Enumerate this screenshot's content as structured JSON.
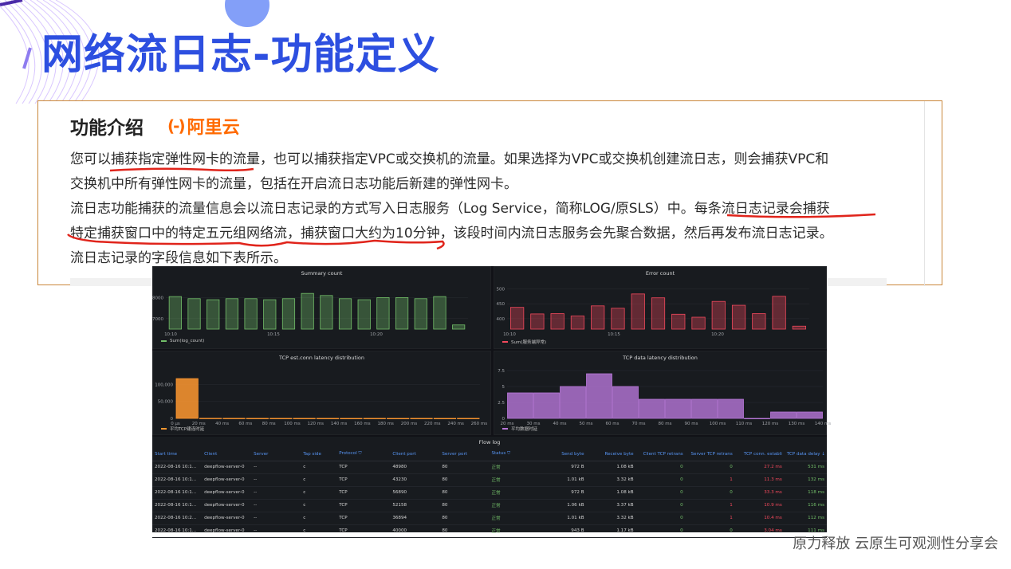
{
  "slide": {
    "title": "网络流日志-功能定义",
    "footer": "原力释放  云原生可观测性分享会"
  },
  "card": {
    "title": "功能介绍",
    "brand": "阿里云",
    "brand_mark": "(-)",
    "paragraphs": [
      "您可以捕获指定弹性网卡的流量，也可以捕获指定VPC或交换机的流量。如果选择为VPC或交换机创建流日志，则会捕获VPC和",
      "交换机中所有弹性网卡的流量，包括在开启流日志功能后新建的弹性网卡。",
      "流日志功能捕获的流量信息会以流日志记录的方式写入日志服务（Log Service，简称LOG/原SLS）中。每条流日志记录会捕获",
      "特定捕获窗口中的特定五元组网络流，捕获窗口大约为10分钟，该段时间内流日志服务会先聚合数据，然后再发布流日志记录。",
      "流日志记录的字段信息如下表所示。"
    ]
  },
  "dashboard": {
    "summary": {
      "title": "Summary count",
      "legend": "Sum(log_count)",
      "color": "#73bf69",
      "y_ticks": [
        "8000",
        "7000"
      ],
      "x_ticks": [
        "10:10",
        "10:15",
        "10:20"
      ]
    },
    "error": {
      "title": "Error count",
      "legend": "Sum(服务端异常)",
      "color": "#f2495c",
      "y_ticks": [
        "500",
        "450",
        "400"
      ],
      "x_ticks": [
        "10:10",
        "10:15",
        "10:20"
      ]
    },
    "tcp_est": {
      "title": "TCP est.conn latency distribution",
      "legend": "平均TCP建连时延",
      "color": "#ff9830",
      "y_ticks": [
        "100,000",
        "50,000",
        "0"
      ],
      "x_ticks": [
        "0 µs",
        "20 ms",
        "40 ms",
        "60 ms",
        "80 ms",
        "100 ms",
        "120 ms",
        "140 ms",
        "160 ms",
        "180 ms",
        "200 ms",
        "220 ms",
        "240 ms",
        "260 ms"
      ]
    },
    "tcp_data": {
      "title": "TCP data latency distribution",
      "legend": "平均数据时延",
      "color": "#b877d9",
      "y_ticks": [
        "7.5",
        "5",
        "2.5",
        "0"
      ],
      "x_ticks": [
        "20 ms",
        "30 ms",
        "40 ms",
        "50 ms",
        "60 ms",
        "70 ms",
        "80 ms",
        "90 ms",
        "100 ms",
        "110 ms",
        "120 ms",
        "130 ms",
        "140 ms"
      ]
    },
    "flowlog": {
      "title": "Flow log",
      "columns": [
        "Start time",
        "Client",
        "Server",
        "Tap side",
        "Protocol ⛉",
        "Client port",
        "Server port",
        "Status ⛉",
        "Send byte",
        "Receive byte",
        "Client TCP retrans",
        "Server TCP retrans",
        "TCP conn. establi",
        "TCP data delay ↓"
      ],
      "rows": [
        [
          "2022-08-16 10:1...",
          "deepflow-server-0",
          "--",
          "c",
          "TCP",
          "48980",
          "80",
          "正常",
          "972 B",
          "1.08 kB",
          "0",
          "0",
          "27.2 ms",
          "531 ms"
        ],
        [
          "2022-08-16 10:1...",
          "deepflow-server-0",
          "--",
          "c",
          "TCP",
          "43230",
          "80",
          "正常",
          "1.01 kB",
          "3.32 kB",
          "0",
          "1",
          "11.3 ms",
          "132 ms"
        ],
        [
          "2022-08-16 10:1...",
          "deepflow-server-0",
          "--",
          "c",
          "TCP",
          "56890",
          "80",
          "正常",
          "972 B",
          "1.08 kB",
          "0",
          "0",
          "33.3 ms",
          "118 ms"
        ],
        [
          "2022-08-16 10:1...",
          "deepflow-server-0",
          "--",
          "c",
          "TCP",
          "52158",
          "80",
          "正常",
          "1.06 kB",
          "3.37 kB",
          "0",
          "1",
          "10.9 ms",
          "116 ms"
        ],
        [
          "2022-08-16 10:2...",
          "deepflow-server-0",
          "--",
          "c",
          "TCP",
          "36894",
          "80",
          "正常",
          "1.01 kB",
          "3.32 kB",
          "0",
          "1",
          "10.4 ms",
          "112 ms"
        ],
        [
          "2022-08-16 10:1...",
          "deepflow-server-0",
          "--",
          "c",
          "TCP",
          "40000",
          "80",
          "正常",
          "943 B",
          "1.17 kB",
          "0",
          "0",
          "3.04 ms",
          "111 ms"
        ]
      ]
    }
  },
  "chart_data": [
    {
      "type": "bar",
      "title": "Summary count",
      "series": [
        {
          "name": "Sum(log_count)",
          "values": [
            8050,
            7950,
            7900,
            7950,
            7950,
            7900,
            7950,
            8200,
            8100,
            7950,
            7900,
            8000,
            8000,
            7950,
            8050,
            6700
          ]
        }
      ],
      "ylim": [
        6500,
        8700
      ]
    },
    {
      "type": "bar",
      "title": "Error count",
      "series": [
        {
          "name": "Sum(服务端异常)",
          "values": [
            438,
            416,
            417,
            409,
            443,
            435,
            483,
            470,
            415,
            405,
            458,
            445,
            417,
            475,
            375
          ]
        }
      ],
      "ylim": [
        365,
        520
      ]
    },
    {
      "type": "bar",
      "title": "TCP est.conn latency distribution",
      "categories": [
        "0 µs",
        "20 ms",
        "40 ms",
        "60 ms",
        "80 ms",
        "100 ms",
        "120 ms",
        "140 ms",
        "160 ms",
        "180 ms",
        "200 ms",
        "220 ms",
        "240 ms"
      ],
      "series": [
        {
          "name": "平均TCP建连时延",
          "values": [
            117000,
            300,
            200,
            100,
            100,
            100,
            100,
            0,
            100,
            0,
            100,
            0,
            100
          ]
        }
      ],
      "ylim": [
        0,
        150000
      ]
    },
    {
      "type": "bar",
      "title": "TCP data latency distribution",
      "categories": [
        "20 ms",
        "30 ms",
        "40 ms",
        "50 ms",
        "60 ms",
        "70 ms",
        "80 ms",
        "90 ms",
        "100 ms",
        "110 ms",
        "120 ms",
        "130 ms"
      ],
      "series": [
        {
          "name": "平均数据时延",
          "values": [
            4,
            4,
            5,
            7,
            5,
            3,
            3,
            3,
            3,
            0,
            1,
            1
          ]
        }
      ],
      "ylim": [
        0,
        8
      ]
    }
  ]
}
